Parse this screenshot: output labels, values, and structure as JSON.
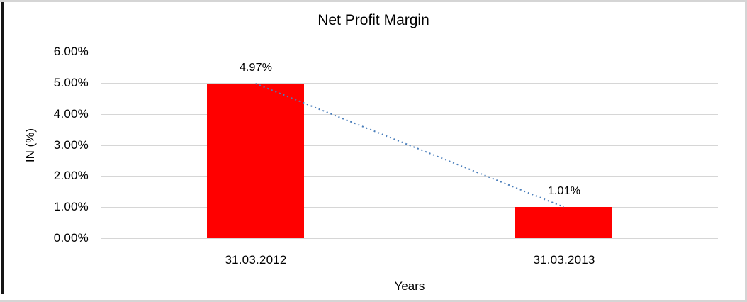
{
  "chart_data": {
    "type": "bar",
    "title": "Net Profit Margin",
    "categories": [
      "31.03.2012",
      "31.03.2013"
    ],
    "values": [
      4.97,
      1.01
    ],
    "data_labels": [
      "4.97%",
      "1.01%"
    ],
    "xlabel": "Years",
    "ylabel": "IN (%)",
    "ylim": [
      0,
      6
    ],
    "ytick_step": 1,
    "ytick_labels": [
      "0.00%",
      "1.00%",
      "2.00%",
      "3.00%",
      "4.00%",
      "5.00%",
      "6.00%"
    ],
    "grid": true,
    "legend": "none",
    "trendline": {
      "style": "dotted",
      "connects": "bar-tops",
      "from_value": 4.97,
      "to_value": 1.01
    }
  },
  "colors": {
    "bar": "#ff0000",
    "trendline": "#4a7ebb",
    "gridline": "#d6d6d6",
    "text": "#000000",
    "background": "#ffffff",
    "frame_gray": "#d5d5d5",
    "frame_left": "#161616"
  }
}
